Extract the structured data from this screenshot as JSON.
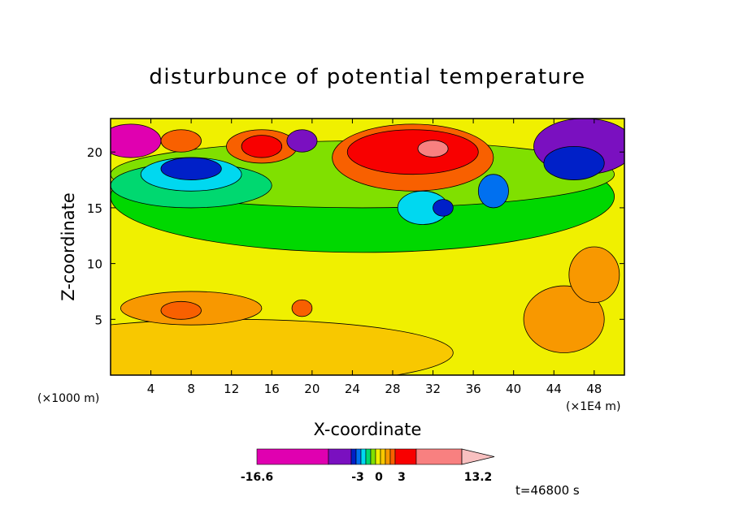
{
  "chart_data": {
    "type": "heatmap",
    "title": "disturbunce of potential temperature",
    "xlabel": "X-coordinate",
    "ylabel": "Z-coordinate",
    "x_unit": "(×1000 m)",
    "x_unit_right": "(×1E4 m)",
    "x_ticks": [
      "4",
      "8",
      "12",
      "16",
      "20",
      "24",
      "28",
      "32",
      "36",
      "40",
      "44",
      "48"
    ],
    "y_ticks": [
      "5",
      "10",
      "15",
      "20"
    ],
    "xlim": [
      0,
      51
    ],
    "ylim": [
      0,
      23
    ],
    "colorbar": {
      "labels": [
        "-16.6",
        "-3",
        "0",
        "3",
        "13.2"
      ],
      "min": -16.6,
      "max": 13.2,
      "colors": [
        "#e000b0",
        "#7a10c0",
        "#0020c8",
        "#0070f0",
        "#00d8f0",
        "#00d870",
        "#80e000",
        "#f0f000",
        "#f8c800",
        "#f89800",
        "#f86000",
        "#f80000",
        "#f88080",
        "#f8c0c0"
      ]
    },
    "annotation": "t=46800 s",
    "regions": [
      {
        "level": 2,
        "x": 12,
        "z": 2,
        "w": 44,
        "h": 6
      },
      {
        "level": 3,
        "x": 8,
        "z": 6,
        "w": 14,
        "h": 3
      },
      {
        "level": 1,
        "x": 25,
        "z": 16,
        "w": 50,
        "h": 10
      },
      {
        "level": 0,
        "x": 25,
        "z": 18,
        "w": 50,
        "h": 6
      },
      {
        "level": -1,
        "x": 8,
        "z": 17,
        "w": 16,
        "h": 4
      },
      {
        "level": -2,
        "x": 8,
        "z": 18,
        "w": 10,
        "h": 3
      },
      {
        "level": -4,
        "x": 8,
        "z": 18.5,
        "w": 6,
        "h": 2
      },
      {
        "level": -7,
        "x": 2,
        "z": 21,
        "w": 6,
        "h": 3
      },
      {
        "level": 4,
        "x": 7,
        "z": 21,
        "w": 4,
        "h": 2
      },
      {
        "level": 4,
        "x": 15,
        "z": 20.5,
        "w": 7,
        "h": 3
      },
      {
        "level": 5,
        "x": 15,
        "z": 20.5,
        "w": 4,
        "h": 2
      },
      {
        "level": -6,
        "x": 19,
        "z": 21,
        "w": 3,
        "h": 2
      },
      {
        "level": 4,
        "x": 30,
        "z": 19.5,
        "w": 16,
        "h": 6
      },
      {
        "level": 5,
        "x": 30,
        "z": 20,
        "w": 13,
        "h": 4
      },
      {
        "level": 6,
        "x": 32,
        "z": 20.3,
        "w": 3,
        "h": 1.5
      },
      {
        "level": -2,
        "x": 31,
        "z": 15,
        "w": 5,
        "h": 3
      },
      {
        "level": -4,
        "x": 33,
        "z": 15,
        "w": 2,
        "h": 1.5
      },
      {
        "level": -3,
        "x": 38,
        "z": 16.5,
        "w": 3,
        "h": 3
      },
      {
        "level": -6,
        "x": 47,
        "z": 20.5,
        "w": 10,
        "h": 5
      },
      {
        "level": -4,
        "x": 46,
        "z": 19,
        "w": 6,
        "h": 3
      },
      {
        "level": 3,
        "x": 45,
        "z": 5,
        "w": 8,
        "h": 6
      },
      {
        "level": 3,
        "x": 48,
        "z": 9,
        "w": 5,
        "h": 5
      },
      {
        "level": 4,
        "x": 7,
        "z": 5.8,
        "w": 4,
        "h": 1.6
      },
      {
        "level": 4,
        "x": 19,
        "z": 6,
        "w": 2,
        "h": 1.5
      }
    ]
  }
}
